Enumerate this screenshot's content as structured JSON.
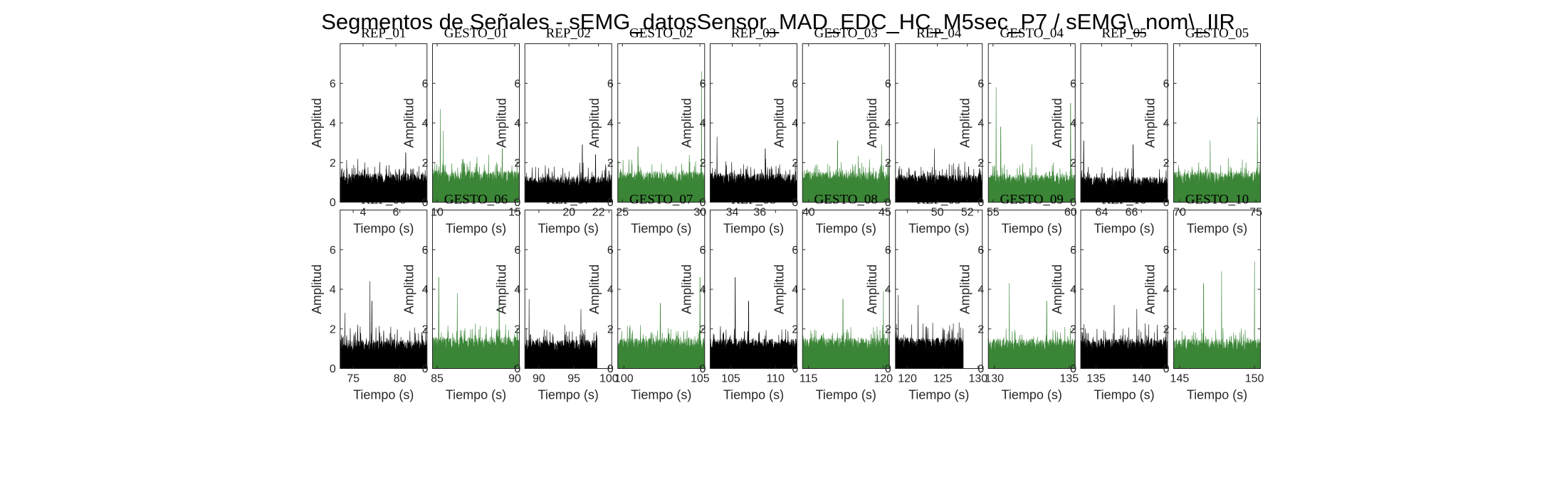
{
  "chart_data": {
    "type": "area",
    "title": "Segmentos de Señales - sEMG_datosSensor_MAD_EDC_HC_M5sec_P7 / sEMG\\_nom\\_IIR",
    "xlabel": "Tiempo (s)",
    "ylabel": "Amplitud",
    "ylim": [
      0,
      8
    ],
    "yticks": [
      0,
      2,
      4,
      6
    ],
    "grid": false,
    "colors": {
      "rep": "#000000",
      "gesto": "#3A8536"
    },
    "panels": [
      {
        "title": "REP_01",
        "kind": "rep",
        "xlim": [
          2.6,
          7.9
        ],
        "data_end": 7.9,
        "xticks": [
          4,
          6
        ],
        "base": 1.45,
        "peaks": [
          [
            6.6,
            2.5
          ]
        ]
      },
      {
        "title": "GESTO_01",
        "kind": "gesto",
        "xlim": [
          9.7,
          15.3
        ],
        "data_end": 15.3,
        "xticks": [
          10,
          15
        ],
        "base": 1.6,
        "peaks": [
          [
            10.2,
            4.7
          ],
          [
            10.4,
            3.6
          ],
          [
            14.2,
            2.7
          ]
        ]
      },
      {
        "title": "REP_02",
        "kind": "rep",
        "xlim": [
          17.0,
          22.9
        ],
        "data_end": 22.9,
        "xticks": [
          20,
          22
        ],
        "base": 1.3,
        "peaks": [
          [
            20.9,
            2.9
          ],
          [
            21.8,
            2.4
          ]
        ]
      },
      {
        "title": "GESTO_02",
        "kind": "gesto",
        "xlim": [
          24.7,
          30.3
        ],
        "data_end": 30.3,
        "xticks": [
          25,
          30
        ],
        "base": 1.55,
        "peaks": [
          [
            30.1,
            6.6
          ],
          [
            26.0,
            2.8
          ]
        ]
      },
      {
        "title": "REP_03",
        "kind": "rep",
        "xlim": [
          32.4,
          38.7
        ],
        "data_end": 38.7,
        "xticks": [
          34,
          36
        ],
        "base": 1.45,
        "peaks": [
          [
            32.9,
            3.3
          ],
          [
            36.4,
            2.7
          ]
        ]
      },
      {
        "title": "GESTO_03",
        "kind": "gesto",
        "xlim": [
          39.6,
          45.3
        ],
        "data_end": 45.3,
        "xticks": [
          40,
          45
        ],
        "base": 1.55,
        "peaks": [
          [
            41.9,
            3.1
          ],
          [
            44.8,
            2.9
          ]
        ]
      },
      {
        "title": "REP_04",
        "kind": "rep",
        "xlim": [
          47.2,
          53.0
        ],
        "data_end": 53.0,
        "xticks": [
          50,
          52
        ],
        "base": 1.4,
        "peaks": [
          [
            49.8,
            2.7
          ]
        ]
      },
      {
        "title": "GESTO_04",
        "kind": "gesto",
        "xlim": [
          54.7,
          60.3
        ],
        "data_end": 60.3,
        "xticks": [
          55,
          60
        ],
        "base": 1.4,
        "peaks": [
          [
            55.2,
            5.8
          ],
          [
            55.5,
            3.8
          ],
          [
            60.0,
            5.0
          ],
          [
            57.5,
            2.9
          ]
        ]
      },
      {
        "title": "REP_05",
        "kind": "rep",
        "xlim": [
          62.6,
          68.4
        ],
        "data_end": 68.4,
        "xticks": [
          64,
          66
        ],
        "base": 1.3,
        "peaks": [
          [
            62.8,
            3.1
          ],
          [
            66.1,
            2.9
          ]
        ]
      },
      {
        "title": "GESTO_05",
        "kind": "gesto",
        "xlim": [
          69.6,
          75.3
        ],
        "data_end": 75.3,
        "xticks": [
          70,
          75
        ],
        "base": 1.55,
        "peaks": [
          [
            75.1,
            4.3
          ],
          [
            72.0,
            3.1
          ]
        ]
      },
      {
        "title": "REP_06",
        "kind": "rep",
        "xlim": [
          73.6,
          82.9
        ],
        "data_end": 82.9,
        "xticks": [
          75,
          80
        ],
        "base": 1.45,
        "peaks": [
          [
            76.8,
            4.4
          ],
          [
            77.0,
            3.4
          ],
          [
            74.1,
            2.8
          ]
        ]
      },
      {
        "title": "GESTO_06",
        "kind": "gesto",
        "xlim": [
          84.7,
          90.3
        ],
        "data_end": 90.3,
        "xticks": [
          85,
          90
        ],
        "base": 1.6,
        "peaks": [
          [
            85.1,
            4.6
          ],
          [
            86.3,
            3.8
          ],
          [
            89.0,
            3.5
          ]
        ]
      },
      {
        "title": "REP_07",
        "kind": "rep",
        "xlim": [
          88.0,
          100.4
        ],
        "data_end": 98.3,
        "xticks": [
          90,
          95,
          100
        ],
        "base": 1.45,
        "peaks": [
          [
            88.6,
            3.5
          ],
          [
            96.0,
            3.0
          ]
        ]
      },
      {
        "title": "GESTO_07",
        "kind": "gesto",
        "xlim": [
          99.6,
          105.3
        ],
        "data_end": 105.3,
        "xticks": [
          100,
          105
        ],
        "base": 1.55,
        "peaks": [
          [
            105.0,
            4.6
          ],
          [
            102.4,
            3.3
          ]
        ]
      },
      {
        "title": "REP_08",
        "kind": "rep",
        "xlim": [
          102.7,
          112.4
        ],
        "data_end": 112.4,
        "xticks": [
          105,
          110
        ],
        "base": 1.5,
        "peaks": [
          [
            105.5,
            4.6
          ],
          [
            107.0,
            3.4
          ]
        ]
      },
      {
        "title": "GESTO_08",
        "kind": "gesto",
        "xlim": [
          114.6,
          120.4
        ],
        "data_end": 120.4,
        "xticks": [
          115,
          120
        ],
        "base": 1.55,
        "peaks": [
          [
            120.0,
            3.9
          ],
          [
            117.3,
            3.5
          ]
        ]
      },
      {
        "title": "REP_09",
        "kind": "rep",
        "xlim": [
          118.3,
          130.6
        ],
        "data_end": 127.9,
        "xticks": [
          120,
          125,
          130
        ],
        "base": 1.55,
        "peaks": [
          [
            118.7,
            3.7
          ],
          [
            121.5,
            3.2
          ]
        ]
      },
      {
        "title": "GESTO_09",
        "kind": "gesto",
        "xlim": [
          129.6,
          135.4
        ],
        "data_end": 135.4,
        "xticks": [
          130,
          135
        ],
        "base": 1.5,
        "peaks": [
          [
            131.0,
            4.3
          ],
          [
            133.5,
            3.4
          ]
        ]
      },
      {
        "title": "REP_10",
        "kind": "rep",
        "xlim": [
          133.3,
          142.9
        ],
        "data_end": 142.9,
        "xticks": [
          135,
          140
        ],
        "base": 1.5,
        "peaks": [
          [
            137.0,
            3.2
          ],
          [
            139.5,
            3.0
          ]
        ]
      },
      {
        "title": "GESTO_10",
        "kind": "gesto",
        "xlim": [
          144.6,
          150.4
        ],
        "data_end": 150.4,
        "xticks": [
          145,
          150
        ],
        "base": 1.5,
        "peaks": [
          [
            150.0,
            5.4
          ],
          [
            146.6,
            4.3
          ],
          [
            147.8,
            4.9
          ]
        ]
      }
    ]
  }
}
